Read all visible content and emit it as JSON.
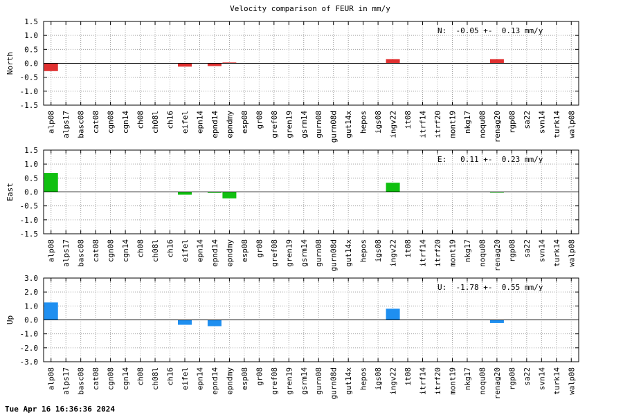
{
  "chart_data": {
    "type": "bar",
    "title": "Velocity comparison of FEUR in mm/y",
    "categories": [
      "alp08",
      "alps17",
      "basc08",
      "cat08",
      "cgn08",
      "cgn14",
      "ch08",
      "ch08l",
      "ch16",
      "eifel",
      "epn14",
      "epnd14",
      "epndmy",
      "esp08",
      "gr08",
      "gref08",
      "gren19",
      "gsrm14",
      "gurn08",
      "gurn08d",
      "gut14x",
      "hepos",
      "igs08",
      "ingv22",
      "it08",
      "itrf14",
      "itrf20",
      "mont19",
      "nkg17",
      "noqu08",
      "renag20",
      "rgp08",
      "sa22",
      "svn14",
      "turk14",
      "walp08"
    ],
    "panels": [
      {
        "ylabel": "North",
        "ylim": [
          -1.5,
          1.5
        ],
        "yticks": [
          "1.5",
          "1.0",
          "0.5",
          "0.0",
          "-0.5",
          "-1.0",
          "-1.5"
        ],
        "color": "#e03030",
        "stat": "N:  -0.05 +-  0.13 mm/y",
        "values": [
          -0.28,
          null,
          null,
          null,
          null,
          null,
          null,
          null,
          null,
          -0.12,
          null,
          -0.1,
          0.03,
          null,
          null,
          null,
          null,
          null,
          null,
          null,
          null,
          null,
          null,
          0.15,
          null,
          null,
          null,
          null,
          null,
          null,
          0.15,
          null,
          null,
          null,
          null,
          null
        ]
      },
      {
        "ylabel": "East",
        "ylim": [
          -1.5,
          1.5
        ],
        "yticks": [
          "1.5",
          "1.0",
          "0.5",
          "0.0",
          "-0.5",
          "-1.0",
          "-1.5"
        ],
        "color": "#10c010",
        "stat": "E:   0.11 +-  0.23 mm/y",
        "values": [
          0.68,
          null,
          null,
          null,
          null,
          null,
          null,
          null,
          null,
          -0.1,
          null,
          -0.03,
          -0.23,
          null,
          null,
          null,
          null,
          null,
          null,
          null,
          null,
          null,
          null,
          0.33,
          null,
          null,
          null,
          null,
          null,
          null,
          -0.02,
          null,
          null,
          null,
          null,
          null
        ]
      },
      {
        "ylabel": "Up",
        "ylim": [
          -3.0,
          3.0
        ],
        "yticks": [
          "3.0",
          "2.0",
          "1.0",
          "0.0",
          "-1.0",
          "-2.0",
          "-3.0"
        ],
        "color": "#1f8ff0",
        "stat": "U:  -1.78 +-  0.55 mm/y",
        "values": [
          1.25,
          null,
          null,
          null,
          null,
          null,
          null,
          null,
          null,
          -0.35,
          null,
          -0.45,
          null,
          null,
          null,
          null,
          null,
          null,
          null,
          null,
          null,
          null,
          null,
          0.8,
          null,
          null,
          null,
          null,
          null,
          null,
          -0.22,
          null,
          null,
          null,
          null,
          null
        ]
      }
    ],
    "grid": true,
    "zero_line": true
  },
  "footer": {
    "timestamp": "Tue Apr 16 16:36:36 2024"
  }
}
